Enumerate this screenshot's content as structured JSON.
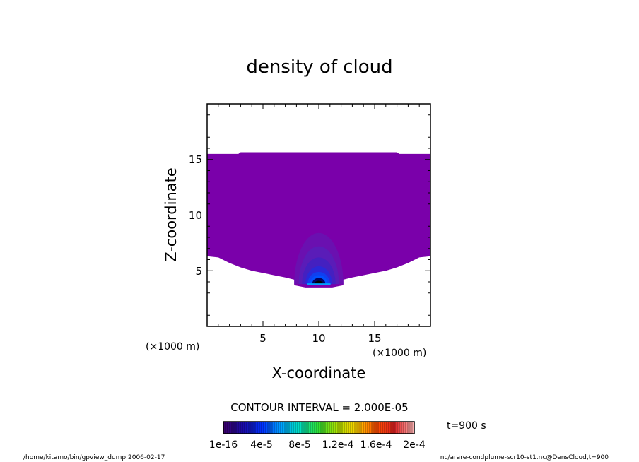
{
  "chart_data": {
    "type": "heatmap",
    "title": "density of cloud",
    "xlabel": "X-coordinate",
    "ylabel": "Z-coordinate",
    "x_unit": "(×1000 m)",
    "z_unit": "(×1000 m)",
    "xlim": [
      0,
      20
    ],
    "ylim": [
      0,
      20
    ],
    "x_ticks": [
      "5",
      "10",
      "15"
    ],
    "y_ticks": [
      "5",
      "10",
      "15"
    ],
    "contour_interval": "CONTOUR INTERVAL = 2.000E-05",
    "time_label": "t=900 s",
    "colorbar_labels": [
      "1e-16",
      "4e-5",
      "8e-5",
      "1.2e-4",
      "1.6e-4",
      "2e-4"
    ],
    "colorbar_range": [
      1e-16,
      0.0002
    ],
    "cloud_layer": {
      "value": 1e-16,
      "top_z": 15.5,
      "bottom_left_z": 6.3,
      "bottom_center_z": 3.7,
      "bottom_right_z": 6.3
    },
    "core": {
      "center_x": 10,
      "center_z": 4.5,
      "max_value_approx": 4e-05
    }
  },
  "footer": {
    "left": "/home/kitamo/bin/gpview_dump  2006-02-17",
    "right": "nc/arare-condplume-scr10-st1.nc@DensCloud,t=900"
  },
  "colors": {
    "cloud": "#7a00aa",
    "ramp": [
      "#3a006a",
      "#1a0aa8",
      "#0030ff",
      "#00a0ff",
      "#00e0c0",
      "#30e030",
      "#b0e000",
      "#ffd000",
      "#ff5000",
      "#e02020",
      "#ffb0b0"
    ]
  }
}
